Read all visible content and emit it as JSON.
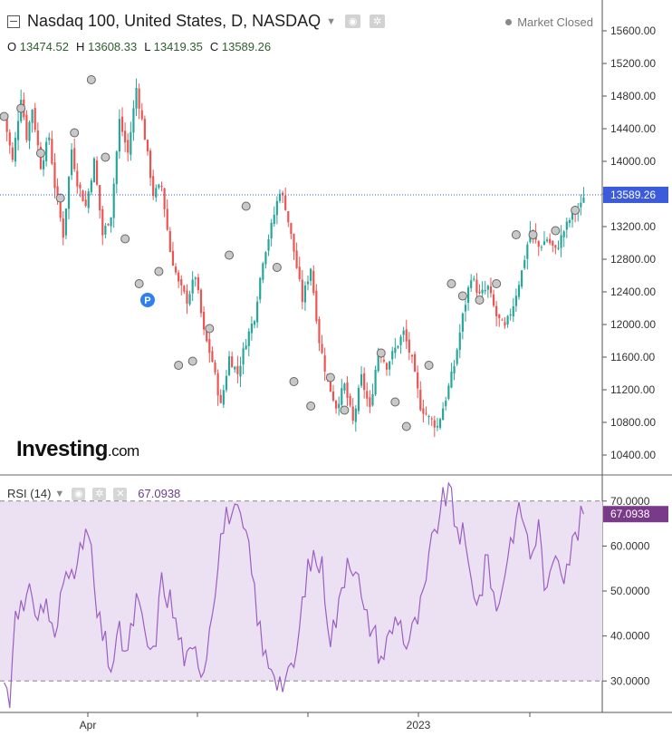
{
  "header": {
    "title": "Nasdaq 100, United States, D, NASDAQ",
    "market_status": "Market Closed",
    "ohlc": {
      "o_label": "O",
      "o_value": "13474.52",
      "h_label": "H",
      "h_value": "13608.33",
      "l_label": "L",
      "l_value": "13419.35",
      "c_label": "C",
      "c_value": "13589.26"
    }
  },
  "logo": {
    "main": "Investing",
    "suffix": ".com"
  },
  "rsi_header": {
    "label": "RSI (14)",
    "value": "67.0938"
  },
  "colors": {
    "up": "#26a69a",
    "down": "#ef5350",
    "rsi_line": "#9c5fc2",
    "rsi_band": "#ece0f3",
    "price_label_bg": "#3b5bdb",
    "rsi_label_bg": "#7a3a8a"
  },
  "chart_data": [
    {
      "type": "candlestick",
      "ylim": [
        10200,
        15800
      ],
      "yticks": [
        "15600.00",
        "15200.00",
        "14800.00",
        "14400.00",
        "14000.00",
        "13600.00",
        "13200.00",
        "12800.00",
        "12400.00",
        "12000.00",
        "11600.00",
        "11200.00",
        "10800.00",
        "10400.00"
      ],
      "current_price_label": "13589.26",
      "current_price": 13589.26,
      "xticks": [
        "Apr",
        "2023"
      ],
      "path": [
        [
          0,
          14550
        ],
        [
          3,
          14000
        ],
        [
          6,
          14800
        ],
        [
          8,
          14300
        ],
        [
          10,
          14650
        ],
        [
          13,
          13950
        ],
        [
          16,
          14300
        ],
        [
          18,
          13700
        ],
        [
          21,
          13100
        ],
        [
          24,
          14150
        ],
        [
          26,
          13750
        ],
        [
          29,
          13450
        ],
        [
          32,
          14000
        ],
        [
          35,
          13100
        ],
        [
          38,
          13350
        ],
        [
          41,
          14500
        ],
        [
          44,
          14100
        ],
        [
          47,
          14900
        ],
        [
          50,
          14300
        ],
        [
          53,
          13600
        ],
        [
          56,
          13700
        ],
        [
          59,
          12900
        ],
        [
          62,
          12500
        ],
        [
          65,
          12300
        ],
        [
          68,
          12600
        ],
        [
          71,
          11900
        ],
        [
          74,
          11550
        ],
        [
          77,
          11000
        ],
        [
          80,
          11600
        ],
        [
          83,
          11400
        ],
        [
          86,
          11800
        ],
        [
          89,
          12100
        ],
        [
          92,
          12800
        ],
        [
          95,
          13200
        ],
        [
          98,
          13650
        ],
        [
          100,
          13450
        ],
        [
          103,
          12900
        ],
        [
          106,
          12300
        ],
        [
          109,
          12700
        ],
        [
          112,
          11800
        ],
        [
          115,
          11300
        ],
        [
          118,
          11000
        ],
        [
          121,
          11250
        ],
        [
          124,
          10800
        ],
        [
          127,
          11350
        ],
        [
          130,
          10950
        ],
        [
          133,
          11700
        ],
        [
          136,
          11500
        ],
        [
          139,
          11700
        ],
        [
          142,
          11900
        ],
        [
          145,
          11550
        ],
        [
          148,
          11000
        ],
        [
          151,
          10850
        ],
        [
          154,
          10750
        ],
        [
          157,
          11100
        ],
        [
          160,
          11500
        ],
        [
          163,
          12100
        ],
        [
          166,
          12600
        ],
        [
          169,
          12350
        ],
        [
          172,
          12450
        ],
        [
          175,
          12100
        ],
        [
          178,
          11950
        ],
        [
          181,
          12250
        ],
        [
          184,
          12650
        ],
        [
          187,
          13150
        ],
        [
          190,
          12950
        ],
        [
          193,
          13050
        ],
        [
          196,
          12900
        ],
        [
          199,
          13150
        ],
        [
          202,
          13350
        ],
        [
          205,
          13450
        ],
        [
          206,
          13589
        ]
      ],
      "markers": [
        [
          0,
          14550
        ],
        [
          6,
          14650
        ],
        [
          13,
          14100
        ],
        [
          20,
          13550
        ],
        [
          25,
          14350
        ],
        [
          31,
          15000
        ],
        [
          36,
          14050
        ],
        [
          43,
          13050
        ],
        [
          48,
          12500
        ],
        [
          55,
          12650
        ],
        [
          62,
          11500
        ],
        [
          67,
          11550
        ],
        [
          73,
          11950
        ],
        [
          80,
          12850
        ],
        [
          86,
          13450
        ],
        [
          97,
          12700
        ],
        [
          103,
          11300
        ],
        [
          109,
          11000
        ],
        [
          116,
          11350
        ],
        [
          121,
          10950
        ],
        [
          134,
          11650
        ],
        [
          139,
          11050
        ],
        [
          143,
          10750
        ],
        [
          151,
          11500
        ],
        [
          159,
          12500
        ],
        [
          163,
          12350
        ],
        [
          169,
          12300
        ],
        [
          175,
          12500
        ],
        [
          182,
          13100
        ],
        [
          188,
          13100
        ],
        [
          196,
          13150
        ],
        [
          203,
          13400
        ]
      ],
      "p_marker": [
        51,
        12300
      ]
    },
    {
      "type": "line",
      "title": "RSI (14)",
      "ylim": [
        23,
        75
      ],
      "yticks": [
        "70.0000",
        "60.0000",
        "50.0000",
        "40.0000",
        "30.0000"
      ],
      "band": [
        30,
        70
      ],
      "current_value": 67.0938,
      "current_value_label": "67.0938",
      "path": [
        [
          0,
          30
        ],
        [
          2,
          25
        ],
        [
          4,
          48
        ],
        [
          7,
          45
        ],
        [
          10,
          50
        ],
        [
          12,
          44
        ],
        [
          15,
          48
        ],
        [
          18,
          38
        ],
        [
          21,
          52
        ],
        [
          24,
          58
        ],
        [
          26,
          54
        ],
        [
          29,
          64
        ],
        [
          31,
          58
        ],
        [
          33,
          44
        ],
        [
          36,
          38
        ],
        [
          38,
          33
        ],
        [
          41,
          40
        ],
        [
          44,
          36
        ],
        [
          47,
          48
        ],
        [
          50,
          40
        ],
        [
          53,
          35
        ],
        [
          56,
          52
        ],
        [
          59,
          48
        ],
        [
          62,
          40
        ],
        [
          65,
          34
        ],
        [
          68,
          36
        ],
        [
          71,
          33
        ],
        [
          74,
          47
        ],
        [
          77,
          62
        ],
        [
          80,
          68
        ],
        [
          83,
          66
        ],
        [
          86,
          62
        ],
        [
          89,
          50
        ],
        [
          92,
          36
        ],
        [
          95,
          34
        ],
        [
          98,
          30
        ],
        [
          101,
          30
        ],
        [
          104,
          36
        ],
        [
          107,
          52
        ],
        [
          110,
          58
        ],
        [
          113,
          55
        ],
        [
          116,
          40
        ],
        [
          119,
          46
        ],
        [
          122,
          58
        ],
        [
          125,
          56
        ],
        [
          128,
          44
        ],
        [
          131,
          42
        ],
        [
          134,
          35
        ],
        [
          137,
          40
        ],
        [
          140,
          45
        ],
        [
          143,
          38
        ],
        [
          146,
          42
        ],
        [
          149,
          48
        ],
        [
          152,
          60
        ],
        [
          155,
          68
        ],
        [
          158,
          73
        ],
        [
          160,
          66
        ],
        [
          163,
          62
        ],
        [
          166,
          52
        ],
        [
          169,
          48
        ],
        [
          172,
          58
        ],
        [
          175,
          45
        ],
        [
          178,
          55
        ],
        [
          181,
          64
        ],
        [
          184,
          68
        ],
        [
          187,
          58
        ],
        [
          190,
          64
        ],
        [
          193,
          48
        ],
        [
          196,
          60
        ],
        [
          199,
          55
        ],
        [
          202,
          60
        ],
        [
          204,
          64
        ],
        [
          206,
          67.1
        ]
      ]
    }
  ]
}
